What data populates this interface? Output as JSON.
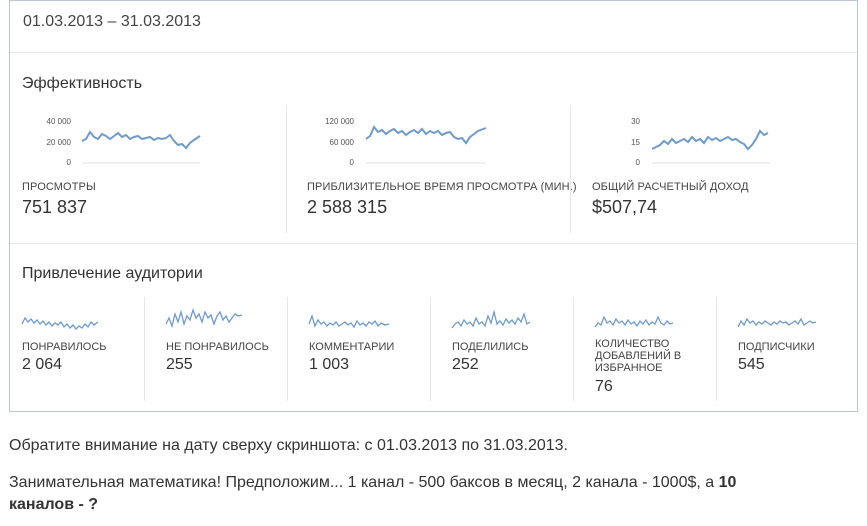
{
  "date_range": "01.03.2013 – 31.03.2013",
  "efficiency": {
    "title": "Эффективность",
    "metrics": [
      {
        "label": "ПРОСМОТРЫ",
        "value": "751 837",
        "ticks": [
          "40 000",
          "20 000",
          "0"
        ]
      },
      {
        "label": "ПРИБЛИЗИТЕЛЬНОЕ ВРЕМЯ ПРОСМОТРА (МИН.)",
        "value": "2 588 315",
        "ticks": [
          "120 000",
          "60 000",
          "0"
        ]
      },
      {
        "label": "ОБЩИЙ РАСЧЕТНЫЙ ДОХОД",
        "value": "$507,74",
        "ticks": [
          "30",
          "15",
          "0"
        ]
      }
    ]
  },
  "audience": {
    "title": "Привлечение аудитории",
    "metrics": [
      {
        "label": "ПОНРАВИЛОСЬ",
        "value": "2 064"
      },
      {
        "label": "НЕ ПОНРАВИЛОСЬ",
        "value": "255"
      },
      {
        "label": "КОММЕНТАРИИ",
        "value": "1 003"
      },
      {
        "label": "ПОДЕЛИЛИСЬ",
        "value": "252"
      },
      {
        "label_line1": "КОЛИЧЕСТВО",
        "label_line2": "ДОБАВЛЕНИЙ В",
        "label_line3": "ИЗБРАННОЕ",
        "value": "76"
      },
      {
        "label": "ПОДПИСЧИКИ",
        "value": "545"
      }
    ]
  },
  "caption1": "Обратите внимание на дату сверху скриншота: с 01.03.2013 по 31.03.2013.",
  "caption2_plain": "Занимательная математика! Предположим... 1 канал - 500 баксов в месяц, 2 канала - 1000$, а ",
  "caption2_bold_a": "10",
  "caption2_bold_b": "каналов - ?",
  "colors": {
    "line": "#6f9bc6",
    "border": "#b9c7d6"
  }
}
